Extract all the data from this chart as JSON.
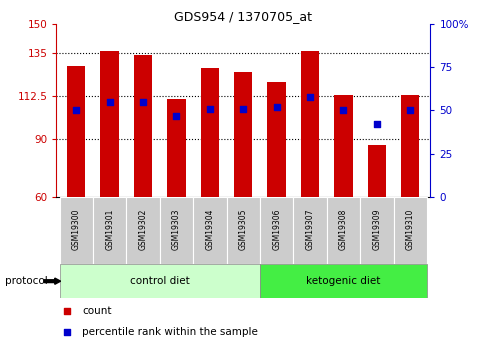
{
  "title": "GDS954 / 1370705_at",
  "samples": [
    "GSM19300",
    "GSM19301",
    "GSM19302",
    "GSM19303",
    "GSM19304",
    "GSM19305",
    "GSM19306",
    "GSM19307",
    "GSM19308",
    "GSM19309",
    "GSM19310"
  ],
  "counts": [
    128,
    136,
    134,
    111,
    127,
    125,
    120,
    136,
    113,
    87,
    113
  ],
  "percentiles": [
    50,
    55,
    55,
    47,
    51,
    51,
    52,
    58,
    50,
    42,
    50
  ],
  "ylim_left": [
    60,
    150
  ],
  "ylim_right": [
    0,
    100
  ],
  "yticks_left": [
    60,
    90,
    112.5,
    135,
    150
  ],
  "yticks_right": [
    0,
    25,
    50,
    75,
    100
  ],
  "ytick_labels_left": [
    "60",
    "90",
    "112.5",
    "135",
    "150"
  ],
  "ytick_labels_right": [
    "0",
    "25",
    "50",
    "75",
    "100%"
  ],
  "bar_color": "#cc0000",
  "dot_color": "#0000cc",
  "bar_width": 0.55,
  "n_control": 6,
  "n_ketogenic": 5,
  "control_label": "control diet",
  "ketogenic_label": "ketogenic diet",
  "protocol_label": "protocol",
  "legend_count": "count",
  "legend_percentile": "percentile rank within the sample",
  "bg_color": "#ffffff",
  "tick_color_left": "#cc0000",
  "tick_color_right": "#0000cc",
  "control_bg": "#ccffcc",
  "ketogenic_bg": "#44ee44",
  "sample_bg": "#cccccc",
  "dotted_lines": [
    90,
    112.5,
    135
  ]
}
